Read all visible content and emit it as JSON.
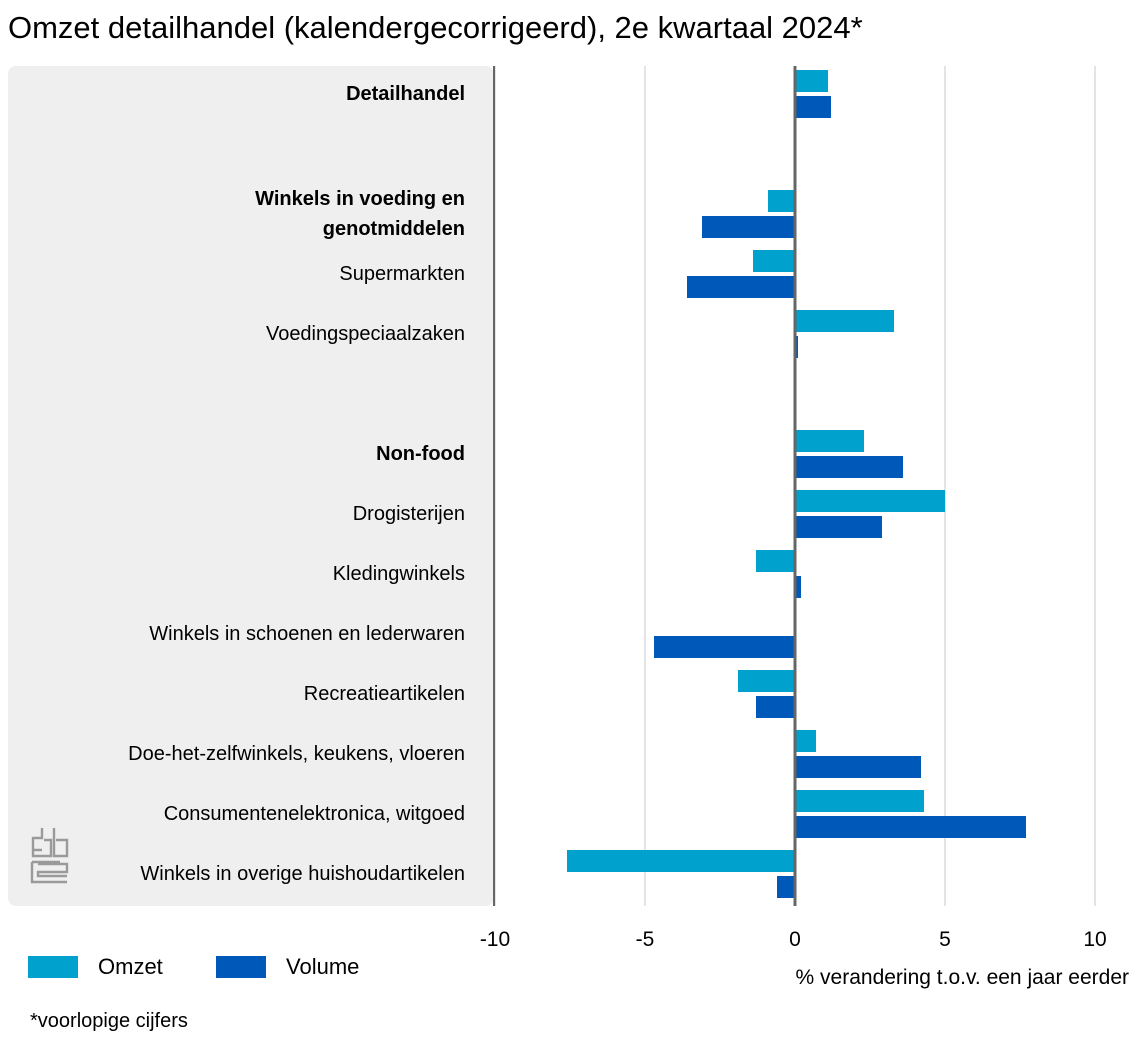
{
  "chart_data": {
    "type": "bar",
    "orientation": "horizontal",
    "title": "Omzet detailhandel (kalendergecorrigeerd), 2e kwartaal 2024*",
    "xlabel": "% verandering t.o.v. een jaar eerder",
    "xlim": [
      -10,
      10
    ],
    "xticks": [
      -10,
      -5,
      0,
      5,
      10
    ],
    "xtick_labels": [
      "-10",
      "-5",
      "0",
      "5",
      "10"
    ],
    "grid": true,
    "categories": [
      {
        "label": "Detailhandel",
        "bold": true,
        "slot": 0,
        "lines": 1
      },
      {
        "label": "Winkels in voeding en genotmiddelen",
        "bold": true,
        "slot": 2,
        "lines": 2
      },
      {
        "label": "Supermarkten",
        "bold": false,
        "slot": 3,
        "lines": 1
      },
      {
        "label": "Voedingspeciaalzaken",
        "bold": false,
        "slot": 4,
        "lines": 1
      },
      {
        "label": "Non-food",
        "bold": true,
        "slot": 6,
        "lines": 1
      },
      {
        "label": "Drogisterijen",
        "bold": false,
        "slot": 7,
        "lines": 1
      },
      {
        "label": "Kledingwinkels",
        "bold": false,
        "slot": 8,
        "lines": 1
      },
      {
        "label": "Winkels in schoenen en lederwaren",
        "bold": false,
        "slot": 9,
        "lines": 1
      },
      {
        "label": "Recreatieartikelen",
        "bold": false,
        "slot": 10,
        "lines": 1
      },
      {
        "label": "Doe-het-zelfwinkels, keukens, vloeren",
        "bold": false,
        "slot": 11,
        "lines": 1
      },
      {
        "label": "Consumentenelektronica, witgoed",
        "bold": false,
        "slot": 12,
        "lines": 1
      },
      {
        "label": "Winkels in overige huishoudartikelen",
        "bold": false,
        "slot": 13,
        "lines": 1
      }
    ],
    "series": [
      {
        "name": "Omzet",
        "color": "#00a1cd",
        "values": [
          1.1,
          -0.9,
          -1.4,
          3.3,
          2.3,
          5.0,
          -1.3,
          0.0,
          -1.9,
          0.7,
          4.3,
          -7.6
        ]
      },
      {
        "name": "Volume",
        "color": "#0058b8",
        "values": [
          1.2,
          -3.1,
          -3.6,
          0.1,
          3.6,
          2.9,
          0.2,
          -4.7,
          -1.3,
          4.2,
          7.7,
          -0.6
        ]
      }
    ],
    "footnote": "*voorlopige cijfers"
  }
}
